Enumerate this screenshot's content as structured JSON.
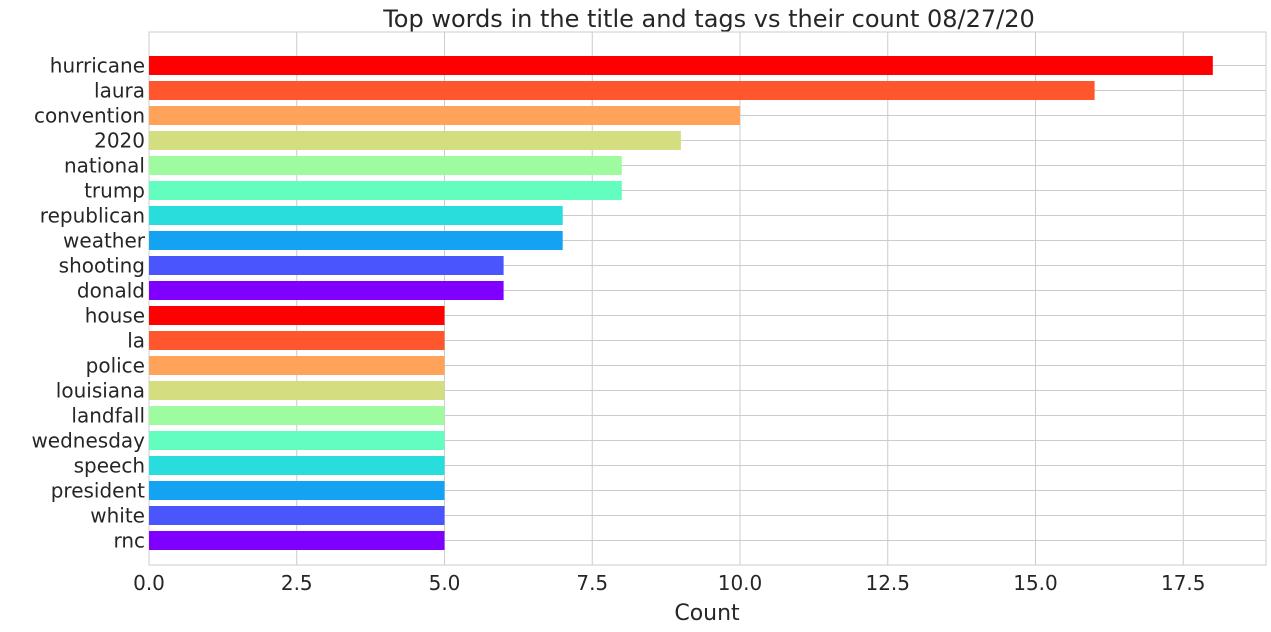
{
  "chart_data": {
    "type": "bar",
    "orientation": "horizontal",
    "title": "Top words in the title and tags vs their count 08/27/20",
    "xlabel": "Count",
    "ylabel": "",
    "xlim": [
      0,
      18.9
    ],
    "x_ticks": [
      "0.0",
      "2.5",
      "5.0",
      "7.5",
      "10.0",
      "12.5",
      "15.0",
      "17.5"
    ],
    "grid": true,
    "categories": [
      "hurricane",
      "laura",
      "convention",
      "2020",
      "national",
      "trump",
      "republican",
      "weather",
      "shooting",
      "donald",
      "house",
      "la",
      "police",
      "louisiana",
      "landfall",
      "wednesday",
      "speech",
      "president",
      "white",
      "rnc"
    ],
    "values": [
      18,
      16,
      10,
      9,
      8,
      8,
      7,
      7,
      6,
      6,
      5,
      5,
      5,
      5,
      5,
      5,
      5,
      5,
      5,
      5
    ],
    "colors": [
      "#ff0000",
      "#ff562d",
      "#ffa35a",
      "#d4dd80",
      "#9ffba0",
      "#63fdc0",
      "#2adddd",
      "#13a3f2",
      "#4a55fb",
      "#7f00ff",
      "#ff0000",
      "#ff562d",
      "#ffa35a",
      "#d4dd80",
      "#9ffba0",
      "#63fdc0",
      "#2adddd",
      "#13a3f2",
      "#4a55fb",
      "#7f00ff"
    ]
  }
}
